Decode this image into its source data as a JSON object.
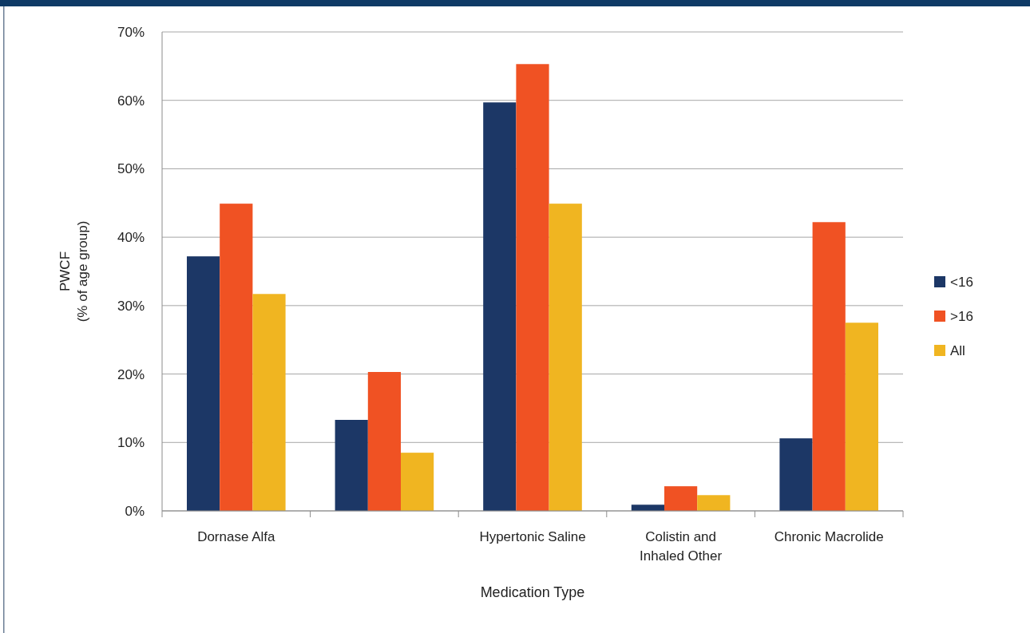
{
  "chart_data": {
    "type": "bar",
    "xlabel": "Medication Type",
    "ylabel": "PWCF\n(% of age group)",
    "categories": [
      "Dornase Alfa",
      null,
      "Hypertonic Saline",
      "Colistin and Inhaled Other",
      "Chronic Macrolide"
    ],
    "series": [
      {
        "name": "<16",
        "color": "#1c3766",
        "values": [
          37.2,
          13.3,
          59.7,
          0.9,
          10.6
        ]
      },
      {
        "name": ">16",
        "color": "#f05223",
        "values": [
          44.9,
          20.3,
          65.3,
          3.6,
          42.2
        ]
      },
      {
        "name": "All",
        "color": "#f0b521",
        "values": [
          31.7,
          8.5,
          44.9,
          2.3,
          27.5
        ]
      }
    ],
    "ylim": [
      0,
      70
    ],
    "yticks": [
      {
        "value": 0,
        "label": "0%"
      },
      {
        "value": 10,
        "label": "10%"
      },
      {
        "value": 20,
        "label": "20%"
      },
      {
        "value": 30,
        "label": "30%"
      },
      {
        "value": 40,
        "label": "40%"
      },
      {
        "value": 50,
        "label": "50%"
      },
      {
        "value": 60,
        "label": "60%"
      },
      {
        "value": 70,
        "label": "70%"
      }
    ],
    "grid": "y",
    "legend": "right"
  }
}
